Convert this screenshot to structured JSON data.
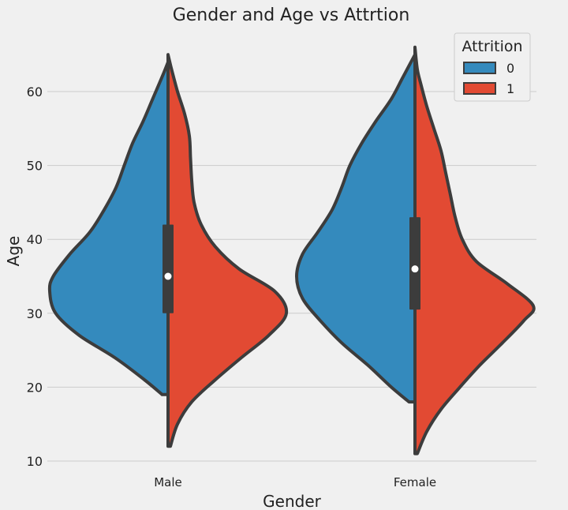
{
  "chart_data": {
    "type": "violin",
    "split": true,
    "title": "Gender and Age vs Attrtion",
    "xlabel": "Gender",
    "ylabel": "Age",
    "ylim": [
      10,
      66
    ],
    "yticks": [
      10,
      20,
      30,
      40,
      50,
      60
    ],
    "grid": true,
    "categories": [
      "Male",
      "Female"
    ],
    "legend": {
      "title": "Attrition",
      "position": "top-right"
    },
    "series": [
      {
        "name": "0",
        "color": "#348ABD",
        "profiles": [
          {
            "age": [
              19,
              21,
              24,
              27,
              30,
              33,
              35,
              38,
              41,
              44,
              47,
              50,
              53,
              56,
              59,
              62,
              64
            ],
            "density": [
              0.05,
              0.2,
              0.45,
              0.75,
              0.95,
              1.0,
              0.97,
              0.83,
              0.66,
              0.54,
              0.44,
              0.37,
              0.3,
              0.21,
              0.13,
              0.05,
              0.0
            ]
          },
          {
            "age": [
              18,
              20,
              23,
              26,
              29,
              32,
              35,
              38,
              41,
              44,
              47,
              50,
              53,
              56,
              59,
              62,
              65
            ],
            "density": [
              0.05,
              0.2,
              0.4,
              0.62,
              0.8,
              0.95,
              1.0,
              0.95,
              0.82,
              0.7,
              0.62,
              0.55,
              0.45,
              0.33,
              0.2,
              0.1,
              0.0
            ]
          }
        ]
      },
      {
        "name": "1",
        "color": "#E24A33",
        "profiles": [
          {
            "age": [
              12,
              15,
              18,
              21,
              24,
              27,
              30,
              33,
              36,
              39,
              42,
              45,
              48,
              51,
              54,
              57,
              60,
              63,
              65
            ],
            "density": [
              0.02,
              0.08,
              0.2,
              0.4,
              0.62,
              0.85,
              1.0,
              0.9,
              0.6,
              0.4,
              0.28,
              0.22,
              0.2,
              0.19,
              0.18,
              0.14,
              0.08,
              0.03,
              0.0
            ]
          },
          {
            "age": [
              11,
              14,
              17,
              20,
              23,
              26,
              29,
              31,
              34,
              37,
              40,
              43,
              46,
              49,
              52,
              55,
              58,
              61,
              63,
              66
            ],
            "density": [
              0.02,
              0.1,
              0.22,
              0.38,
              0.55,
              0.74,
              0.92,
              1.0,
              0.78,
              0.52,
              0.4,
              0.34,
              0.3,
              0.26,
              0.22,
              0.16,
              0.1,
              0.05,
              0.02,
              0.0
            ]
          }
        ]
      }
    ],
    "box": [
      {
        "q1": 30,
        "median": 35,
        "q3": 42
      },
      {
        "q1": 30.5,
        "median": 36,
        "q3": 43
      }
    ]
  }
}
